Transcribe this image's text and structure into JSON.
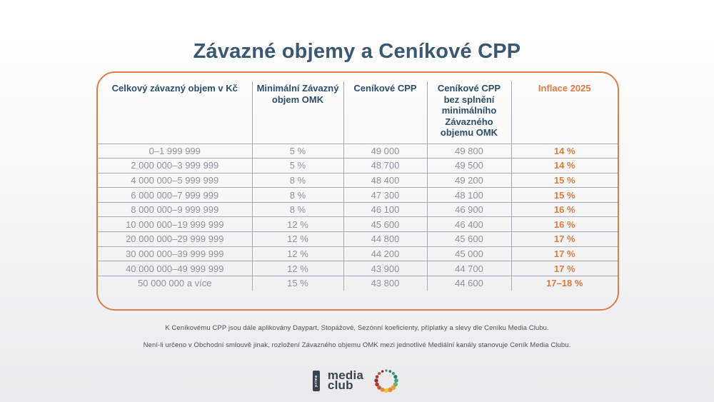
{
  "title": "Závazné objemy a Ceníkové CPP",
  "table": {
    "headers": [
      "Celkový závazný objem v Kč",
      "Minimální Závazný objem OMK",
      "Ceníkové CPP",
      "Ceníkové CPP bez splnění minimálního Závazného objemu OMK",
      "Inflace 2025"
    ],
    "rows": [
      [
        "0–1 999 999",
        "5 %",
        "49 000",
        "49 800",
        "14 %"
      ],
      [
        "2 000 000–3 999 999",
        "5 %",
        "48 700",
        "49 500",
        "14 %"
      ],
      [
        "4 000 000–5 999 999",
        "8 %",
        "48 400",
        "49 200",
        "15 %"
      ],
      [
        "6 000 000–7 999 999",
        "8 %",
        "47 300",
        "48 100",
        "15 %"
      ],
      [
        "8 000 000–9 999 999",
        "8 %",
        "46 100",
        "46 900",
        "16 %"
      ],
      [
        "10 000 000–19 999 999",
        "12 %",
        "45 600",
        "46 400",
        "16 %"
      ],
      [
        "20 000 000–29 999 999",
        "12 %",
        "44 800",
        "45 600",
        "17 %"
      ],
      [
        "30 000 000–39 999 999",
        "12 %",
        "44 200",
        "45 000",
        "17 %"
      ],
      [
        "40 000 000–49 999 999",
        "12 %",
        "43 900",
        "44 700",
        "17 %"
      ],
      [
        "50 000 000 a více",
        "15 %",
        "43 800",
        "44 600",
        "17–18 %"
      ]
    ]
  },
  "footnotes": [
    "K Ceníkovému CPP jsou dále aplikovány Daypart, Stopážové, Sezónní koeficienty, příplatky a slevy dle Ceníku Media Clubu.",
    "Není-li určeno v Obchodní smlouvě jinak, rozložení Závazného objemu OMK mezi jednotlivé Mediální kanály stanovuje Ceník Media Clubu."
  ],
  "logo": {
    "prima": "prima",
    "line1": "media",
    "line2": "club",
    "dots": [
      {
        "a": -90,
        "r": 1.6,
        "c": "#3f8f7d"
      },
      {
        "a": -67.5,
        "r": 1.9,
        "c": "#2f8274"
      },
      {
        "a": -45,
        "r": 2.2,
        "c": "#3f9d8a"
      },
      {
        "a": -22.5,
        "r": 2.6,
        "c": "#2e7f71"
      },
      {
        "a": 0,
        "r": 2.9,
        "c": "#45a08c"
      },
      {
        "a": 22.5,
        "r": 3.1,
        "c": "#6fae73"
      },
      {
        "a": 45,
        "r": 3.3,
        "c": "#e0a23a"
      },
      {
        "a": 67.5,
        "r": 3.3,
        "c": "#e8883a"
      },
      {
        "a": 90,
        "r": 3.2,
        "c": "#f0c13f"
      },
      {
        "a": 112.5,
        "r": 3.0,
        "c": "#e2912f"
      },
      {
        "a": 135,
        "r": 2.9,
        "c": "#c85a35"
      },
      {
        "a": 157.5,
        "r": 2.8,
        "c": "#b03a31"
      },
      {
        "a": 180,
        "r": 2.7,
        "c": "#8f2f2d"
      },
      {
        "a": 202.5,
        "r": 2.3,
        "c": "#a93a31"
      },
      {
        "a": 225,
        "r": 2.0,
        "c": "#c14e38"
      },
      {
        "a": 247.5,
        "r": 1.7,
        "c": "#7e2a28"
      }
    ]
  },
  "colors": {
    "accent_orange": "#dc7e4a",
    "orange_text": "#e0793c",
    "header_blue": "#2e4d68",
    "title_blue": "#3b5872",
    "body_gray": "#8e939b",
    "line_gray": "#a6abb3",
    "logo_dark": "#39434f"
  }
}
